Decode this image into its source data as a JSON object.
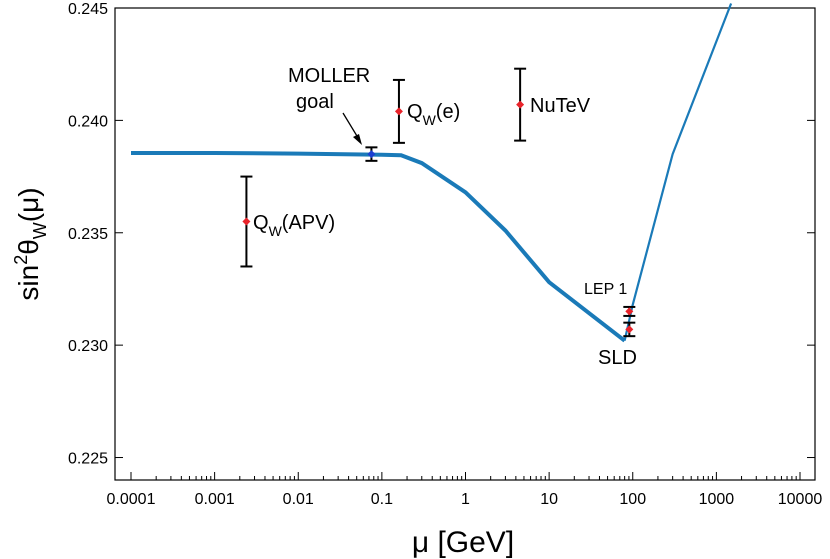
{
  "chart_data": {
    "type": "scatter",
    "xlabel": "μ [GeV]",
    "ylabel": [
      "sin",
      "2",
      "θ",
      "W",
      "(μ)"
    ],
    "xscale": "log",
    "xlim": [
      0.0001,
      10000
    ],
    "xticks": [
      0.0001,
      0.001,
      0.01,
      0.1,
      1,
      10,
      100,
      1000,
      10000
    ],
    "ylim": [
      0.224,
      0.245
    ],
    "yticks": [
      0.225,
      {
        "value": 0.23,
        "label": "0.230"
      },
      0.235,
      {
        "value": 0.24,
        "label": "0.240"
      },
      0.245
    ],
    "lines": [
      {
        "color": "#1a7ab8",
        "x": [
          0.0001,
          0.001,
          0.01,
          0.1,
          0.17,
          0.3,
          1,
          3,
          10,
          80
        ],
        "values": [
          0.23855,
          0.23855,
          0.23852,
          0.23847,
          0.23845,
          0.2381,
          0.2368,
          0.2351,
          0.2328,
          0.2302
        ]
      },
      {
        "color": "#1a7ab8",
        "x": [
          80,
          100,
          300,
          1500
        ],
        "values": [
          0.2302,
          0.2318,
          0.2385,
          0.2452
        ]
      }
    ],
    "points": {
      "x": [
        0.0024,
        0.075,
        0.16,
        4.5,
        91,
        91
      ],
      "values": [
        0.2355,
        0.2385,
        0.2404,
        0.2407,
        0.2315,
        0.2307
      ],
      "errors": [
        0.002,
        0.0003,
        0.0014,
        0.0016,
        0.0002,
        0.0003
      ],
      "colors": [
        "#e8232a",
        "#1a3fd0",
        "#e8232a",
        "#e8232a",
        "#e8232a",
        "#e8232a"
      ],
      "error_color": "#000000"
    },
    "annotations": [
      {
        "text": [
          "MOLLER",
          "goal"
        ]
      },
      {
        "text": [
          "Q",
          "W",
          "(e)"
        ]
      },
      {
        "text": [
          "NuTeV"
        ]
      },
      {
        "text": [
          "Q",
          "W",
          "(APV)"
        ]
      },
      {
        "text": [
          "LEP 1"
        ]
      },
      {
        "text": [
          "SLD"
        ]
      }
    ]
  }
}
